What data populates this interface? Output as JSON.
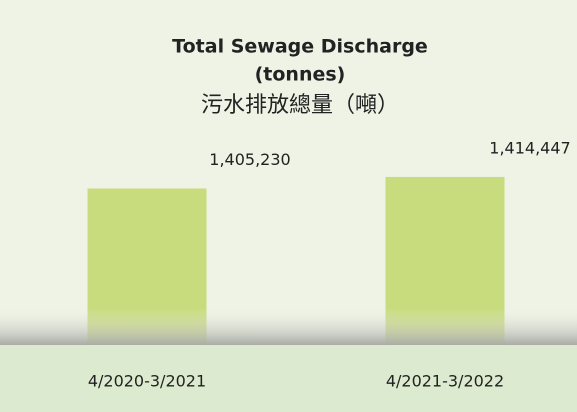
{
  "chart_data": {
    "type": "bar",
    "title": [
      "Total Sewage Discharge",
      "(tonnes)",
      "污水排放總量（噸）"
    ],
    "categories": [
      "4/2020-3/2021",
      "4/2021-3/2022"
    ],
    "values": [
      1405230,
      1414447
    ],
    "value_labels": [
      "1,405,230",
      "1,414,447"
    ],
    "color": "#c8dc7e",
    "ylim": [
      1280000,
      1420000
    ]
  }
}
